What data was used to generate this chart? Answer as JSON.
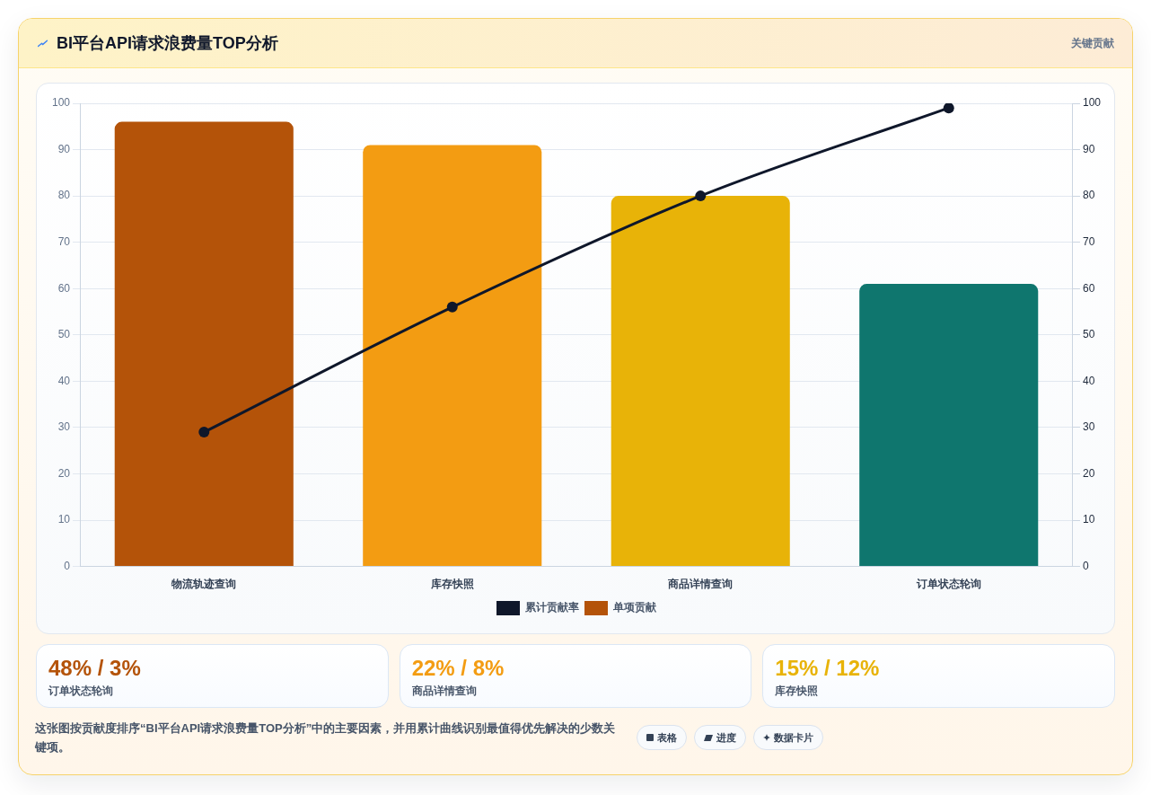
{
  "chart_data": [
    {
      "type": "bar",
      "title": "BI平台API请求浪费量TOP分析",
      "subtitle": "关键贡献",
      "categories": [
        "物流轨迹查询",
        "库存快照",
        "商品详情查询",
        "订单状态轮询"
      ],
      "series": [
        {
          "name": "累计贡献率",
          "type": "line",
          "color": "#0f172a",
          "axis": "y2",
          "values": [
            29,
            56,
            80,
            99
          ]
        },
        {
          "name": "单项贡献",
          "type": "bar",
          "colors": [
            "#b45309",
            "#f39c12",
            "#e8b308",
            "#0f766e"
          ],
          "values": [
            96,
            91,
            80,
            61
          ]
        }
      ],
      "ylim": [
        0,
        100
      ],
      "yticks": [
        0,
        10,
        20,
        30,
        40,
        50,
        60,
        70,
        80,
        90,
        100
      ],
      "y2lim": [
        0,
        100
      ],
      "y2ticks": [
        0,
        10,
        20,
        30,
        40,
        50,
        60,
        70,
        80,
        90,
        100
      ],
      "grid": "y",
      "legend": "bottom",
      "marker": "circle"
    },
    {
      "type": "other",
      "annotations": [
        "48% / 3%",
        "订单状态轮询",
        "22% / 8%",
        "商品详情查询",
        "15% / 12%",
        "库存快照"
      ]
    },
    {
      "type": "other",
      "annotations": [
        "这张图按贡献度排序“BI平台API请求浪费量TOP分析”中的主要因素，并用累计曲线识别最值得优先解决的少数关键项。",
        "表格",
        "进度",
        "数据卡片"
      ]
    }
  ]
}
